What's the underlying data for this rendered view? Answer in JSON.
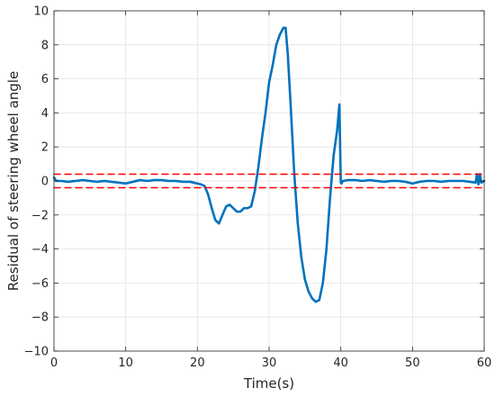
{
  "chart_data": {
    "type": "line",
    "title": "",
    "xlabel": "Time(s)",
    "ylabel": "Residual of steering wheel angle",
    "xlim": [
      0,
      60
    ],
    "ylim": [
      -10,
      10
    ],
    "xticks": [
      0,
      10,
      20,
      30,
      40,
      50,
      60
    ],
    "yticks": [
      -10,
      -8,
      -6,
      -4,
      -2,
      0,
      2,
      4,
      6,
      8,
      10
    ],
    "xtick_labels": [
      "0",
      "10",
      "20",
      "30",
      "40",
      "50",
      "60"
    ],
    "ytick_labels": [
      "−10",
      "−8",
      "−6",
      "−4",
      "−2",
      "0",
      "2",
      "4",
      "6",
      "8",
      "10"
    ],
    "grid": true,
    "series": [
      {
        "color": "#0072BD",
        "style": "solid",
        "x": [
          0,
          0.3,
          1,
          2,
          3,
          4,
          5,
          6,
          7,
          8,
          9,
          10,
          11,
          12,
          13,
          14,
          15,
          16,
          17,
          18,
          19,
          20,
          20.5,
          21,
          21.5,
          22,
          22.5,
          23,
          23.5,
          24,
          24.5,
          25,
          25.5,
          26,
          26.5,
          27,
          27.5,
          28,
          28.5,
          29,
          29.5,
          30,
          30.5,
          31,
          31.5,
          32,
          32.3,
          32.6,
          33,
          33.5,
          34,
          34.5,
          35,
          35.5,
          36,
          36.5,
          37,
          37.5,
          38,
          38.5,
          39,
          39.5,
          39.8,
          40,
          40.1,
          40.3,
          41,
          42,
          43,
          44,
          45,
          46,
          47,
          48,
          49,
          50,
          51,
          52,
          53,
          54,
          55,
          56,
          57,
          58,
          58.8,
          59,
          59.2,
          59.4,
          59.6,
          60
        ],
        "y": [
          0.2,
          0.0,
          0.0,
          -0.05,
          0.0,
          0.05,
          0.0,
          -0.05,
          0.0,
          -0.05,
          -0.1,
          -0.15,
          -0.05,
          0.05,
          0.0,
          0.05,
          0.05,
          0.0,
          0.0,
          -0.05,
          -0.05,
          -0.15,
          -0.2,
          -0.3,
          -0.8,
          -1.6,
          -2.3,
          -2.5,
          -2.0,
          -1.5,
          -1.4,
          -1.6,
          -1.8,
          -1.8,
          -1.6,
          -1.6,
          -1.5,
          -0.6,
          0.8,
          2.5,
          4.0,
          5.8,
          6.8,
          8.0,
          8.6,
          9.0,
          9.0,
          7.5,
          4.5,
          0.5,
          -2.5,
          -4.5,
          -5.8,
          -6.5,
          -6.9,
          -7.1,
          -7.0,
          -6.0,
          -4.0,
          -1.0,
          1.5,
          3.0,
          4.5,
          -0.1,
          -0.15,
          0.0,
          0.05,
          0.05,
          0.0,
          0.05,
          0.0,
          -0.05,
          0.0,
          0.0,
          -0.05,
          -0.15,
          -0.05,
          0.0,
          0.0,
          -0.05,
          0.0,
          0.0,
          0.0,
          -0.05,
          -0.1,
          0.4,
          -0.2,
          0.4,
          -0.1,
          0.0
        ]
      },
      {
        "color": "#FF0000",
        "style": "dashed",
        "x": [
          0,
          60
        ],
        "y": [
          0.4,
          0.4
        ]
      },
      {
        "color": "#FF0000",
        "style": "dashed",
        "x": [
          0,
          60
        ],
        "y": [
          -0.4,
          -0.4
        ]
      }
    ]
  }
}
